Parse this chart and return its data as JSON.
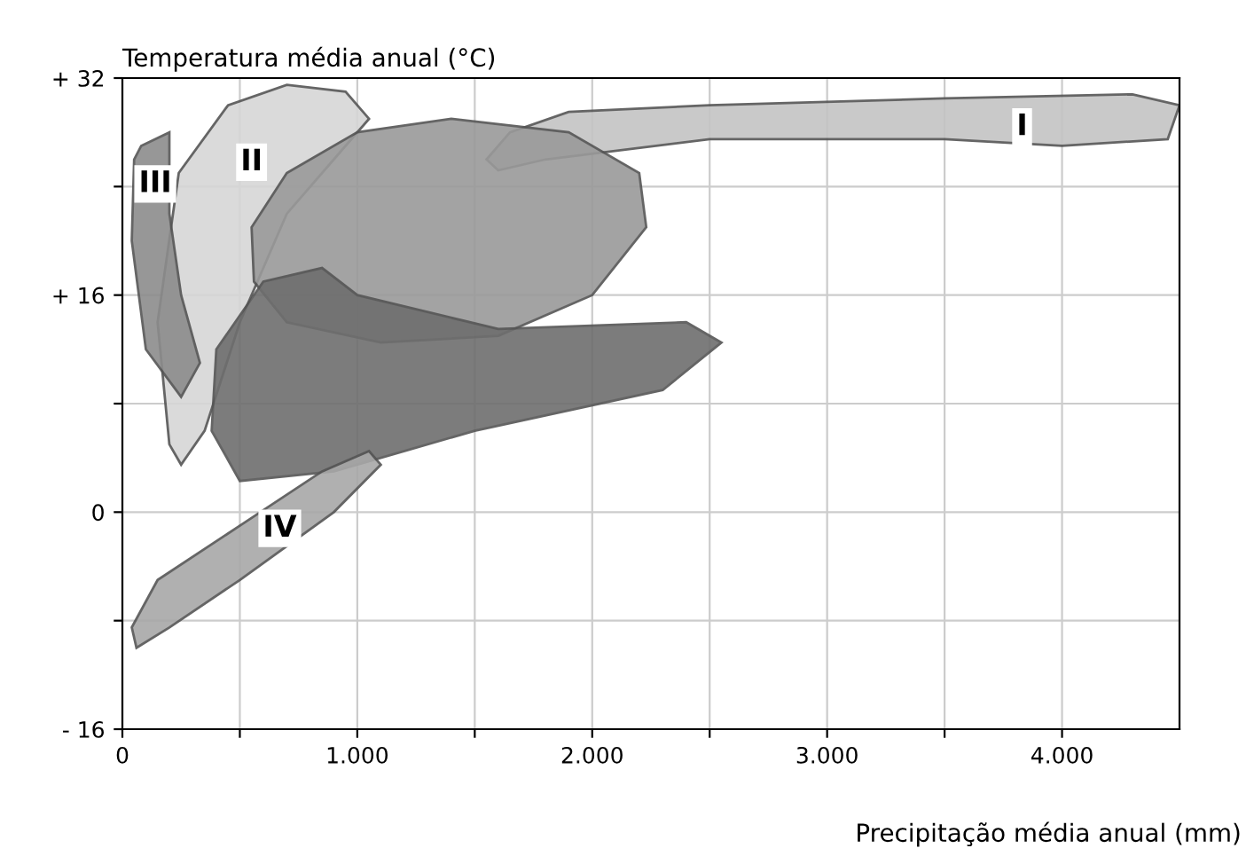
{
  "chart_data": {
    "type": "area",
    "xlabel": "Precipitação média anual (mm)",
    "ylabel": "Temperatura média anual (°C)",
    "xlim": [
      0,
      4500
    ],
    "xticks": [
      0,
      {
        "value": 500,
        "label": null
      },
      {
        "value": 1000,
        "label": "1.000"
      },
      {
        "value": 1500,
        "label": null
      },
      {
        "value": 2000,
        "label": "2.000"
      },
      {
        "value": 2500,
        "label": null
      },
      {
        "value": 3000,
        "label": "3.000"
      },
      {
        "value": 3500,
        "label": null
      },
      {
        "value": 4000,
        "label": "4.000"
      }
    ],
    "ylim": [
      -16,
      32
    ],
    "yticks": [
      {
        "value": -16,
        "label": "- 16"
      },
      {
        "value": -8,
        "label": null
      },
      0,
      {
        "value": 8,
        "label": null
      },
      {
        "value": 16,
        "label": "+ 16"
      },
      {
        "value": 24,
        "label": null
      },
      {
        "value": 32,
        "label": "+ 32"
      }
    ],
    "grid": true,
    "series": [
      {
        "color": "#c4c4c4",
        "x": [
          1550,
          1650,
          1900,
          2500,
          3500,
          4300,
          4500,
          4450,
          4000,
          3500,
          2500,
          1800,
          1600,
          1550
        ],
        "values": [
          26,
          28,
          29.5,
          30,
          30.5,
          30.8,
          30,
          27.5,
          27,
          27.5,
          27.5,
          26,
          25.2,
          26
        ]
      },
      {
        "color": "#d6d6d6",
        "x": [
          200,
          150,
          240,
          450,
          700,
          950,
          1050,
          900,
          700,
          500,
          350,
          250,
          200
        ],
        "values": [
          5,
          14,
          25,
          30,
          31.5,
          31,
          29,
          26,
          22,
          14,
          6,
          3.5,
          5
        ]
      },
      {
        "color": "#8c8c8c",
        "x": [
          80,
          200,
          200,
          250,
          330,
          250,
          100,
          40,
          50,
          80
        ],
        "values": [
          27,
          28,
          22,
          16,
          11,
          8.5,
          12,
          20,
          26,
          27
        ]
      },
      {
        "color": "#9a9a9a",
        "x": [
          550,
          700,
          1000,
          1400,
          1900,
          2200,
          2230,
          2000,
          1600,
          1100,
          700,
          560,
          550
        ],
        "values": [
          21,
          25,
          28,
          29,
          28,
          25,
          21,
          16,
          13,
          12.5,
          14,
          17,
          21
        ]
      },
      {
        "color": "#6e6e6e",
        "x": [
          400,
          600,
          850,
          1000,
          1600,
          2400,
          2550,
          2300,
          1500,
          900,
          500,
          380,
          400
        ],
        "values": [
          12,
          17,
          18,
          16,
          13.5,
          14,
          12.5,
          9,
          6,
          3,
          2.3,
          6,
          12
        ]
      },
      {
        "color": "#a8a8a8",
        "x": [
          60,
          200,
          500,
          900,
          1100,
          1050,
          850,
          500,
          150,
          40,
          60
        ],
        "values": [
          -10,
          -8.5,
          -5,
          0,
          3.5,
          4.5,
          3,
          -1,
          -5,
          -8.5,
          -10
        ]
      }
    ],
    "annotations": [
      {
        "text": "I",
        "x": 3830,
        "y": 28.4
      },
      {
        "text": "II",
        "x": 550,
        "y": 25.8
      },
      {
        "text": "III",
        "x": 140,
        "y": 24.2
      },
      {
        "text": "IV",
        "x": 670,
        "y": -1.2
      }
    ]
  }
}
